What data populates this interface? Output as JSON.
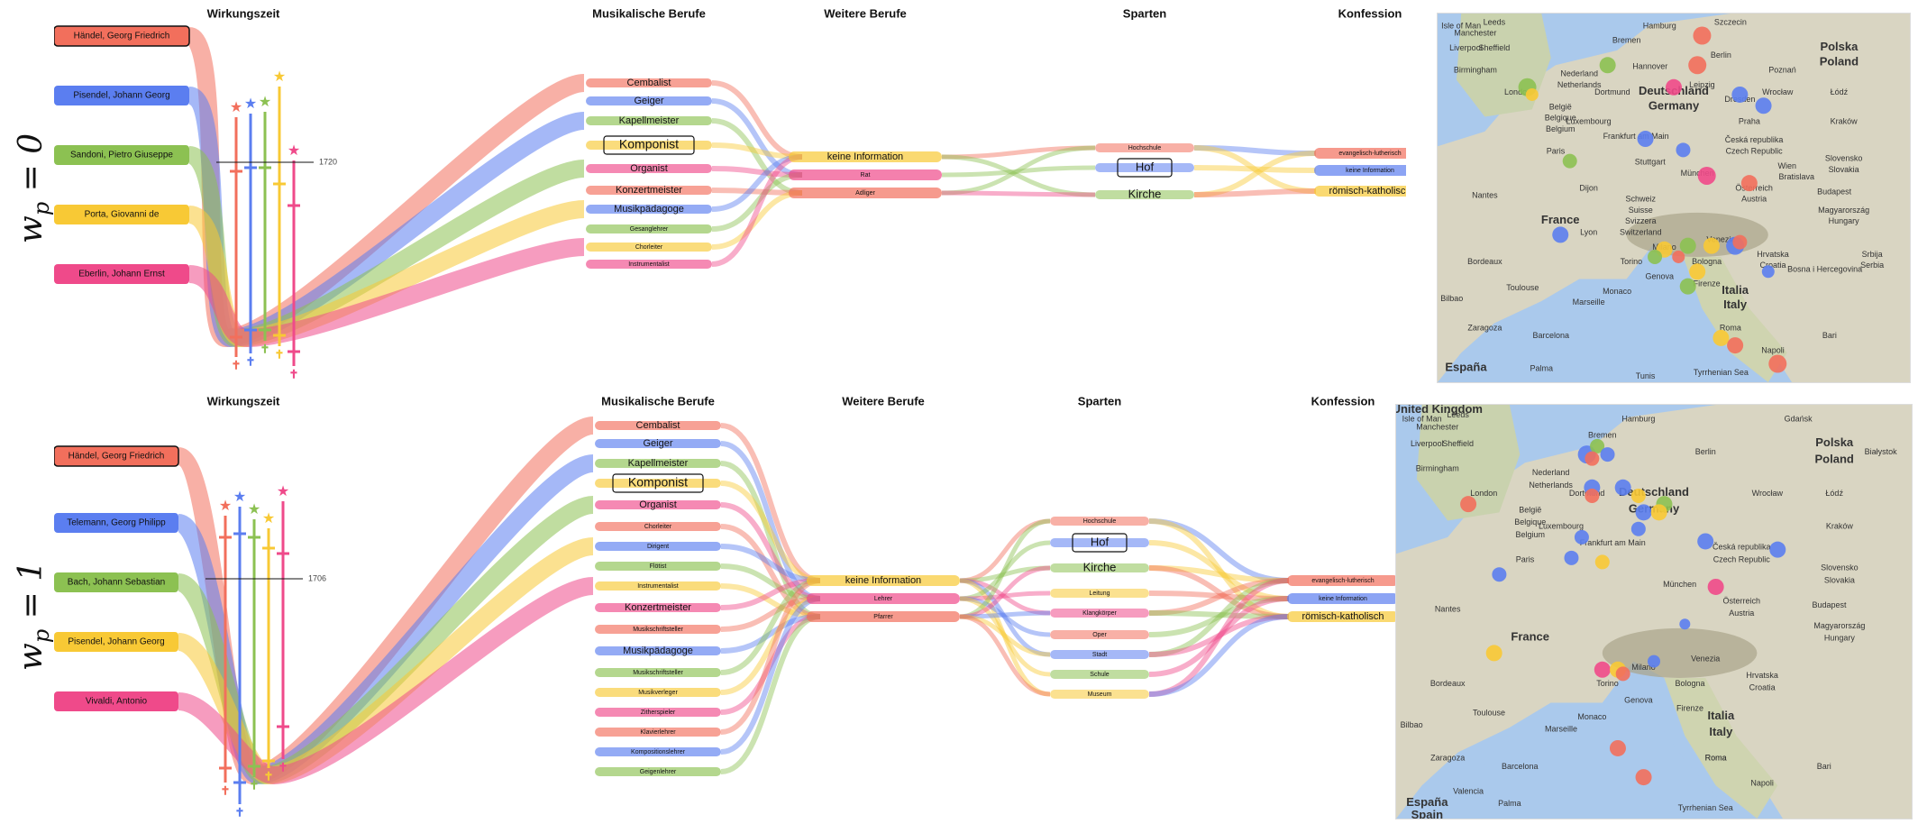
{
  "rows": [
    {
      "label_var": "w",
      "label_sub": "p",
      "label_eq": "= 0",
      "columns": [
        "Wirkungszeit",
        "Musikalische Berufe",
        "Weitere Berufe",
        "Sparten",
        "Konfession"
      ],
      "persons": [
        {
          "name": "Händel, Georg Friedrich",
          "color": "#f26f5c"
        },
        {
          "name": "Pisendel, Johann Georg",
          "color": "#5b7ef0"
        },
        {
          "name": "Sandoni, Pietro Giuseppe",
          "color": "#8cc152"
        },
        {
          "name": "Porta, Giovanni de",
          "color": "#f8c935"
        },
        {
          "name": "Eberlin, Johann Ernst",
          "color": "#ef4a8a"
        }
      ],
      "year": "1720",
      "mus_berufe": [
        "Cembalist",
        "Geiger",
        "Kapellmeister",
        "Komponist",
        "Organist",
        "Konzertmeister",
        "Musikpädagoge",
        "Gesanglehrer",
        "Chorleiter",
        "Instrumentalist"
      ],
      "weitere": [
        "keine Information",
        "Rat",
        "Adliger"
      ],
      "sparten": [
        "Hochschule",
        "Hof",
        "Kirche"
      ],
      "konfession": [
        "evangelisch-lutherisch",
        "keine Information",
        "römisch-katholisch"
      ],
      "map_labels": [
        "Leeds",
        "Manchester",
        "Sheffield",
        "Birmingham",
        "London",
        "Nederland",
        "Netherlands",
        "België",
        "Belgique",
        "Belgium",
        "Paris",
        "France",
        "Nantes",
        "Bordeaux",
        "Toulouse",
        "Marseille",
        "Bilbao",
        "Zaragoza",
        "Barcelona",
        "Bremen",
        "Hamburg",
        "Szczecin",
        "Berlin",
        "Poznań",
        "Polska",
        "Poland",
        "Deutschland",
        "Germany",
        "Wrocław",
        "Łódź",
        "Kraków",
        "Praha",
        "Česká republika",
        "Czech Republic",
        "Frankfurt am Main",
        "München",
        "Wien",
        "Österreich",
        "Austria",
        "Bratislava",
        "Budapest",
        "Slovensko",
        "Slovakia",
        "Magyarország",
        "Hungary",
        "Schweiz",
        "Suisse",
        "Svizzera",
        "Switzerland",
        "Milano",
        "Venezia",
        "Torino",
        "Genova",
        "Bologna",
        "Firenze",
        "Italia",
        "Italy",
        "Roma",
        "Napoli",
        "Bari",
        "Hrvatska",
        "Croatia",
        "Bosna i Hercegovina",
        "Srbija",
        "Serbia",
        "Monaco",
        "Palma",
        "Tyrrhenian Sea",
        "España",
        "Dijon",
        "Lyon",
        "Luxembourg",
        "Dortmund",
        "Dresden",
        "Leipzig",
        "Hannover",
        "Stuttgart",
        "Isle of Man",
        "Liverpool",
        "Tunis"
      ]
    },
    {
      "label_var": "w",
      "label_sub": "p",
      "label_eq": "= 1",
      "columns": [
        "Wirkungszeit",
        "Musikalische Berufe",
        "Weitere Berufe",
        "Sparten",
        "Konfession"
      ],
      "persons": [
        {
          "name": "Händel, Georg Friedrich",
          "color": "#f26f5c"
        },
        {
          "name": "Telemann, Georg Philipp",
          "color": "#5b7ef0"
        },
        {
          "name": "Bach, Johann Sebastian",
          "color": "#8cc152"
        },
        {
          "name": "Pisendel, Johann Georg",
          "color": "#f8c935"
        },
        {
          "name": "Vivaldi, Antonio",
          "color": "#ef4a8a"
        }
      ],
      "year": "1706",
      "mus_berufe": [
        "Cembalist",
        "Geiger",
        "Kapellmeister",
        "Komponist",
        "Organist",
        "Chorleiter",
        "Dirigent",
        "Flötist",
        "Instrumentalist",
        "Konzertmeister",
        "Musikschriftsteller",
        "Musikpädagoge",
        "Musikschriftsteller",
        "Musikverleger",
        "Zitherspieler",
        "Klavierlehrer",
        "Kompositionslehrer",
        "Geigenlehrer"
      ],
      "weitere": [
        "keine Information",
        "Lehrer",
        "Pfarrer"
      ],
      "sparten": [
        "Hochschule",
        "Hof",
        "Kirche",
        "Leitung",
        "Klangkörper",
        "Oper",
        "Stadt",
        "Schule",
        "Museum"
      ],
      "konfession": [
        "evangelisch-lutherisch",
        "keine Information",
        "römisch-katholisch"
      ],
      "map_labels": [
        "United Kingdom",
        "Isle of Man",
        "Leeds",
        "Liverpool",
        "Manchester",
        "Sheffield",
        "Birmingham",
        "London",
        "Nederland",
        "Netherlands",
        "België",
        "Belgique",
        "Belgium",
        "Luxembourg",
        "Paris",
        "France",
        "Nantes",
        "Bordeaux",
        "Toulouse",
        "Marseille",
        "Bilbao",
        "Zaragoza",
        "Barcelona",
        "Valencia",
        "España",
        "Spain",
        "Palma",
        "Bremen",
        "Hamburg",
        "Berlin",
        "Gdańsk",
        "Białystok",
        "Polska",
        "Poland",
        "Deutschland",
        "Germany",
        "Dortmund",
        "Frankfurt am Main",
        "Česká republika",
        "Czech Republic",
        "München",
        "Österreich",
        "Austria",
        "Slovensko",
        "Slovakia",
        "Budapest",
        "Magyarország",
        "Hungary",
        "Milano",
        "Torino",
        "Genova",
        "Venezia",
        "Bologna",
        "Firenze",
        "Hrvatska",
        "Croatia",
        "Italia",
        "Italy",
        "Roma",
        "Napoli",
        "Bari",
        "Tyrrhenian Sea",
        "Roma",
        "Monaco",
        "Kraków",
        "Wrocław",
        "Łódź"
      ]
    }
  ]
}
